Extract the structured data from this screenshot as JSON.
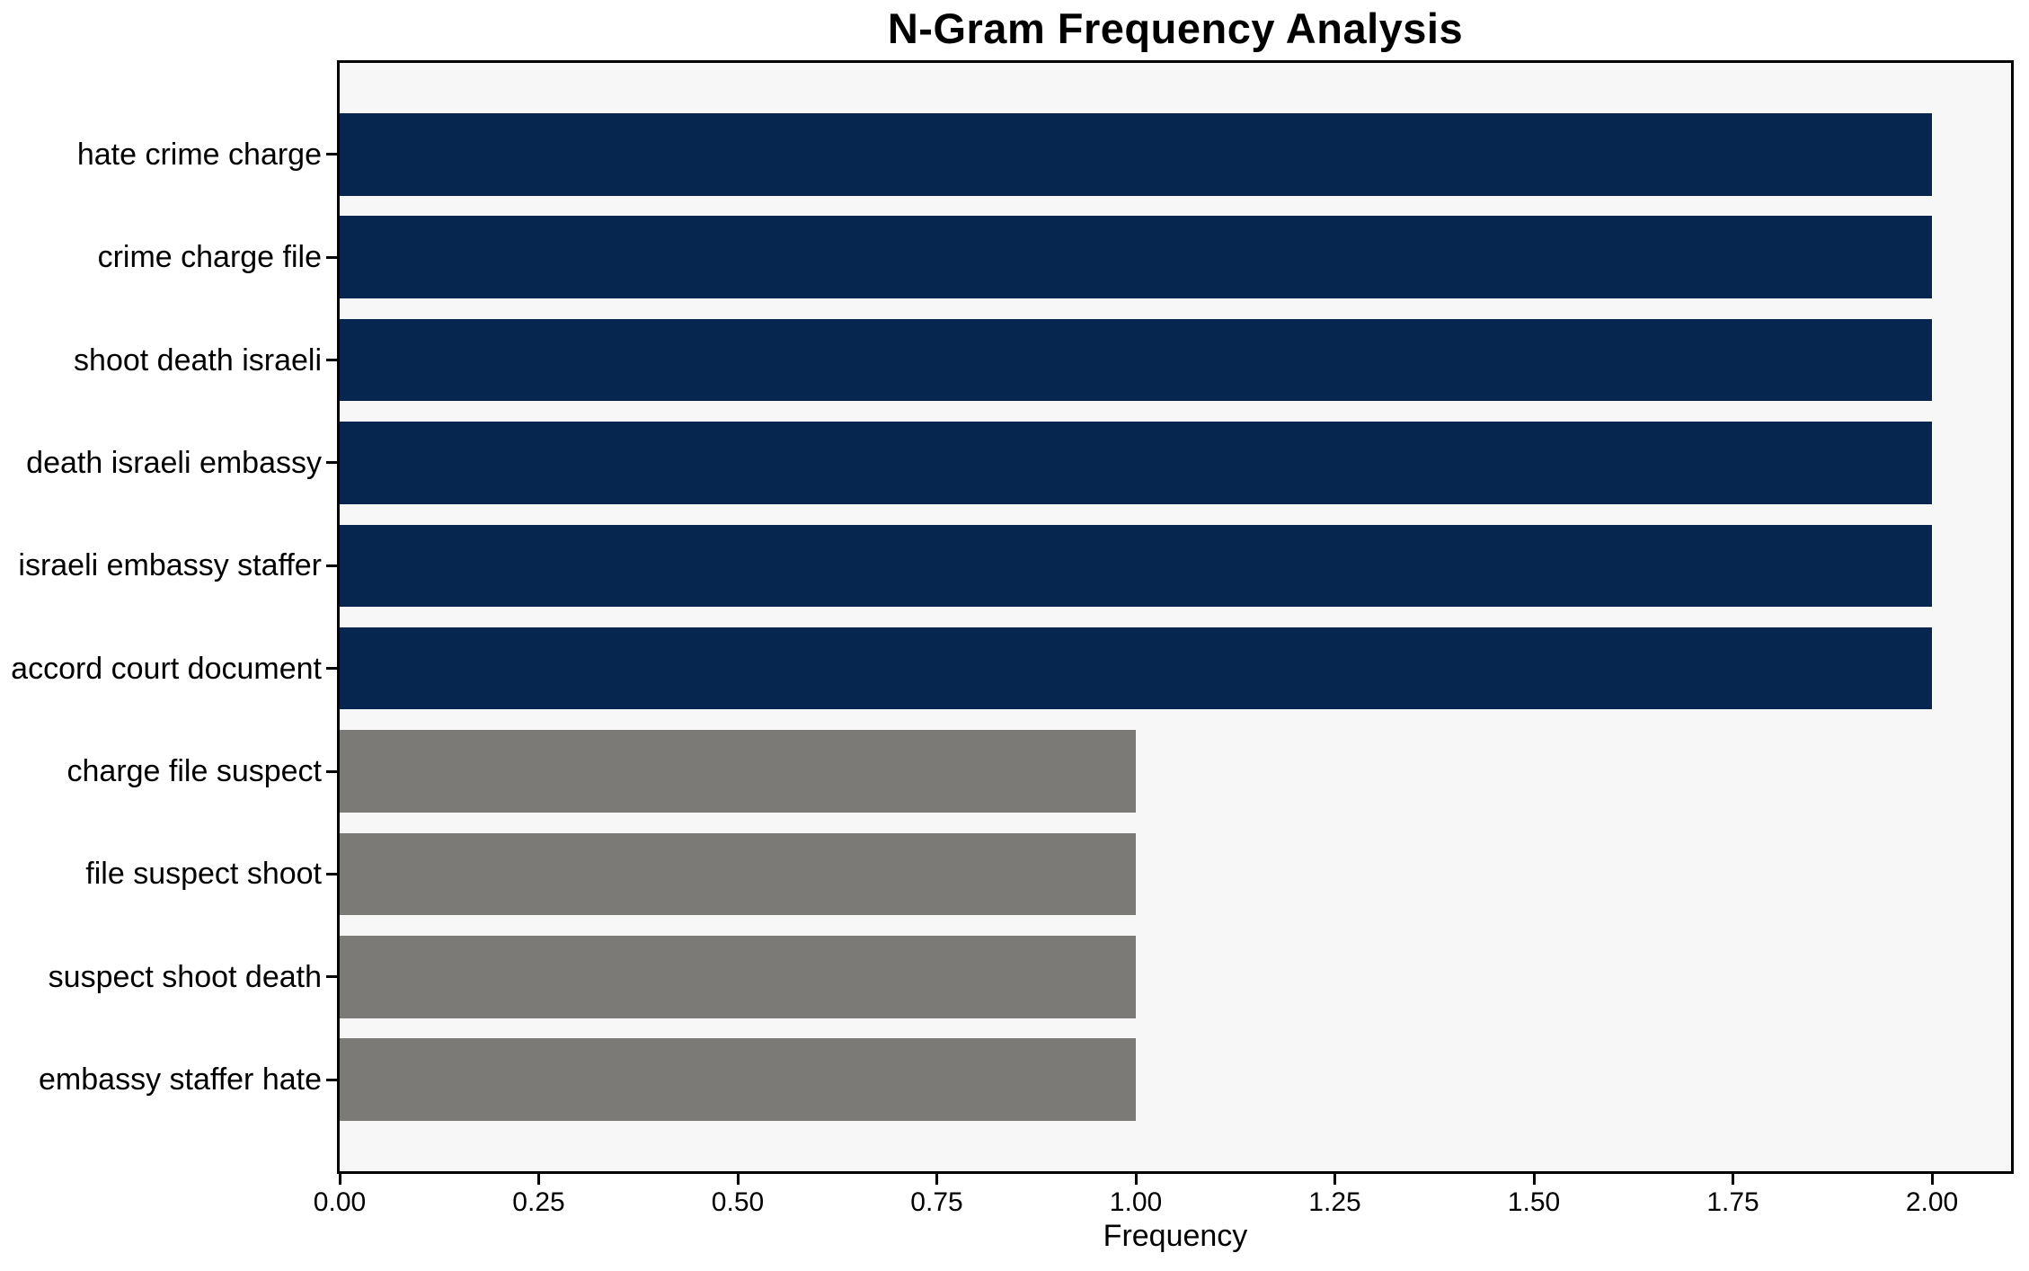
{
  "chart_data": {
    "type": "bar",
    "orientation": "horizontal",
    "title": "N-Gram Frequency Analysis",
    "xlabel": "Frequency",
    "ylabel": "",
    "categories": [
      "hate crime charge",
      "crime charge file",
      "shoot death israeli",
      "death israeli embassy",
      "israeli embassy staffer",
      "accord court document",
      "charge file suspect",
      "file suspect shoot",
      "suspect shoot death",
      "embassy staffer hate"
    ],
    "values": [
      2,
      2,
      2,
      2,
      2,
      2,
      1,
      1,
      1,
      1
    ],
    "bar_colors": [
      "#06254f",
      "#06254f",
      "#06254f",
      "#06254f",
      "#06254f",
      "#06254f",
      "#7b7a77",
      "#7b7a77",
      "#7b7a77",
      "#7b7a77"
    ],
    "xlim": [
      0,
      2.0993
    ],
    "xticks": {
      "values": [
        0,
        0.25,
        0.5,
        0.75,
        1.0,
        1.25,
        1.5,
        1.75,
        2.0
      ],
      "labels": [
        "0.00",
        "0.25",
        "0.50",
        "0.75",
        "1.00",
        "1.25",
        "1.50",
        "1.75",
        "2.00"
      ]
    },
    "grid": false,
    "legend": null,
    "colors": {
      "plot_background": "#f7f7f7",
      "figure_background": "#ffffff",
      "spine": "#000000",
      "text": "#000000",
      "high_freq_bar": "#06254f",
      "low_freq_bar": "#7b7a77"
    }
  }
}
